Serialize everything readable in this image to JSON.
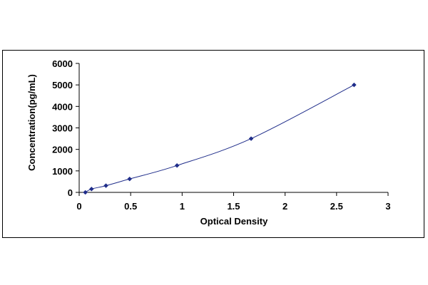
{
  "chart_data": {
    "type": "scatter",
    "title": "",
    "xlabel": "Optical Density",
    "ylabel": "Concentration(pg/mL)",
    "xlim": [
      0,
      3
    ],
    "ylim": [
      0,
      6000
    ],
    "x_ticks": [
      0,
      0.5,
      1,
      1.5,
      2,
      2.5,
      3
    ],
    "y_ticks": [
      0,
      1000,
      2000,
      3000,
      4000,
      5000,
      6000
    ],
    "grid": false,
    "legend": "none",
    "series": [
      {
        "points": [
          {
            "x": 0.06,
            "y": 0
          },
          {
            "x": 0.12,
            "y": 156
          },
          {
            "x": 0.26,
            "y": 312
          },
          {
            "x": 0.49,
            "y": 625
          },
          {
            "x": 0.95,
            "y": 1250
          },
          {
            "x": 1.67,
            "y": 2500
          },
          {
            "x": 2.67,
            "y": 5000
          }
        ],
        "color": "#1f2d8a",
        "fit_line": "smooth curve"
      }
    ]
  }
}
